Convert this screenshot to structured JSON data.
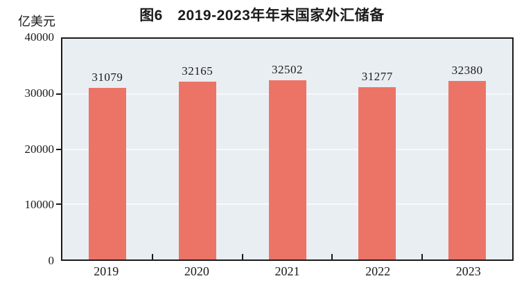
{
  "figure": {
    "title": "图6　2019-2023年年末国家外汇储备",
    "unit_label": "亿美元"
  },
  "chart_data": {
    "type": "bar",
    "title": "图6　2019-2023年年末国家外汇储备",
    "unit_label": "亿美元",
    "categories": [
      "2019",
      "2020",
      "2021",
      "2022",
      "2023"
    ],
    "values": [
      31079,
      32165,
      32502,
      31277,
      32380
    ],
    "value_labels": [
      "31079",
      "32165",
      "32502",
      "31277",
      "32380"
    ],
    "xlabel": "",
    "ylabel": "亿美元",
    "ylim": [
      0,
      40000
    ],
    "y_ticks": [
      0,
      10000,
      20000,
      30000,
      40000
    ],
    "y_tick_labels": [
      "0",
      "10000",
      "20000",
      "30000",
      "40000"
    ],
    "grid": "horizontal gridlines at y ticks",
    "legend": "none",
    "value_labels_shown": true,
    "colors": {
      "bar": "#ec7467",
      "plot_background": "#e9eef2",
      "gridline": "#f6f9fb",
      "frame": "#1a1a1a",
      "text": "#1a1a1a"
    }
  }
}
